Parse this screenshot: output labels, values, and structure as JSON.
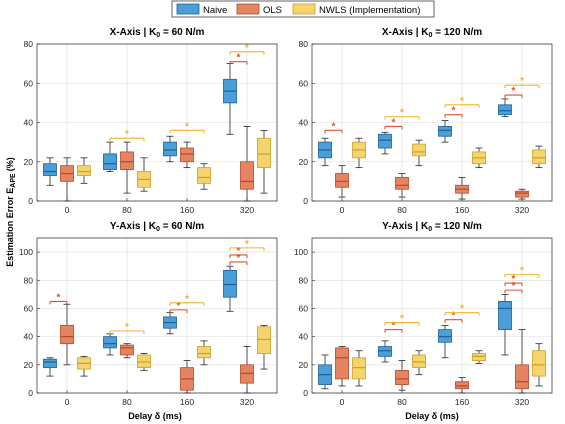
{
  "legend": {
    "entries": [
      {
        "label": "Naive",
        "color": "#4a9fd8"
      },
      {
        "label": "OLS",
        "color": "#e58462"
      },
      {
        "label": "NWLS (Implementation)",
        "color": "#f5d46e"
      }
    ]
  },
  "figure": {
    "ylabel": "Estimation Error E",
    "ylabel_sub": "APE",
    "ylabel_unit": "(%)",
    "xlabel": "Delay δ (ms)"
  },
  "chart_data": [
    {
      "type": "box",
      "title": "X-Axis | K",
      "title_sub": "0",
      "title_rest": " = 60 N/m",
      "categories": [
        "0",
        "80",
        "160",
        "320"
      ],
      "ylim": [
        0,
        80
      ],
      "yticks": [
        0,
        20,
        40,
        60,
        80
      ],
      "grid": true,
      "series": [
        {
          "name": "Naive",
          "boxes": [
            {
              "min": 8,
              "q1": 13,
              "median": 15,
              "q3": 19,
              "max": 22
            },
            {
              "min": 15,
              "q1": 16,
              "median": 19,
              "q3": 24,
              "max": 30
            },
            {
              "min": 20,
              "q1": 23,
              "median": 26,
              "q3": 30,
              "max": 33
            },
            {
              "min": 34,
              "q1": 50,
              "median": 56,
              "q3": 62,
              "max": 70
            }
          ]
        },
        {
          "name": "OLS",
          "boxes": [
            {
              "min": 0,
              "q1": 10,
              "median": 14,
              "q3": 18,
              "max": 22
            },
            {
              "min": 4,
              "q1": 16,
              "median": 20,
              "q3": 25,
              "max": 30
            },
            {
              "min": 17,
              "q1": 20,
              "median": 24,
              "q3": 27,
              "max": 30
            },
            {
              "min": 0,
              "q1": 6,
              "median": 10,
              "q3": 20,
              "max": 38
            }
          ]
        },
        {
          "name": "NWLS (Implementation)",
          "boxes": [
            {
              "min": 9,
              "q1": 13,
              "median": 15,
              "q3": 18,
              "max": 22
            },
            {
              "min": 5,
              "q1": 7,
              "median": 11,
              "q3": 15,
              "max": 22
            },
            {
              "min": 6,
              "q1": 9,
              "median": 12,
              "q3": 17,
              "max": 19
            },
            {
              "min": 4,
              "q1": 17,
              "median": 24,
              "q3": 32,
              "max": 36
            }
          ]
        }
      ],
      "significance": [
        {
          "cat": 1,
          "from": 0,
          "to": 2,
          "level": 32,
          "color": "#f0b429"
        },
        {
          "cat": 2,
          "from": 0,
          "to": 2,
          "level": 36,
          "color": "#f0b429"
        },
        {
          "cat": 3,
          "from": 0,
          "to": 1,
          "level": 71,
          "color": "#e0502a"
        },
        {
          "cat": 3,
          "from": 0,
          "to": 2,
          "level": 76,
          "color": "#f0b429"
        }
      ]
    },
    {
      "type": "box",
      "title": "X-Axis | K",
      "title_sub": "0",
      "title_rest": " = 120 N/m",
      "categories": [
        "0",
        "80",
        "160",
        "320"
      ],
      "ylim": [
        0,
        80
      ],
      "yticks": [
        0,
        20,
        40,
        60,
        80
      ],
      "grid": true,
      "series": [
        {
          "name": "Naive",
          "boxes": [
            {
              "min": 18,
              "q1": 22,
              "median": 26,
              "q3": 30,
              "max": 32
            },
            {
              "min": 24,
              "q1": 27,
              "median": 31,
              "q3": 34,
              "max": 35
            },
            {
              "min": 30,
              "q1": 33,
              "median": 36,
              "q3": 38,
              "max": 41
            },
            {
              "min": 43,
              "q1": 44,
              "median": 46,
              "q3": 49,
              "max": 52
            }
          ]
        },
        {
          "name": "OLS",
          "boxes": [
            {
              "min": 2,
              "q1": 7,
              "median": 10,
              "q3": 14,
              "max": 18
            },
            {
              "min": 2,
              "q1": 6,
              "median": 8,
              "q3": 12,
              "max": 14
            },
            {
              "min": 1,
              "q1": 4,
              "median": 6,
              "q3": 8,
              "max": 12
            },
            {
              "min": 1,
              "q1": 2,
              "median": 4,
              "q3": 5,
              "max": 6
            }
          ]
        },
        {
          "name": "NWLS (Implementation)",
          "boxes": [
            {
              "min": 17,
              "q1": 22,
              "median": 26,
              "q3": 30,
              "max": 32
            },
            {
              "min": 18,
              "q1": 23,
              "median": 25,
              "q3": 29,
              "max": 31
            },
            {
              "min": 17,
              "q1": 19,
              "median": 22,
              "q3": 25,
              "max": 27
            },
            {
              "min": 17,
              "q1": 19,
              "median": 22,
              "q3": 26,
              "max": 28
            }
          ]
        }
      ],
      "significance": [
        {
          "cat": 0,
          "from": 0,
          "to": 1,
          "level": 36,
          "color": "#e0502a"
        },
        {
          "cat": 1,
          "from": 0,
          "to": 1,
          "level": 38,
          "color": "#e0502a"
        },
        {
          "cat": 1,
          "from": 0,
          "to": 2,
          "level": 43,
          "color": "#f0b429"
        },
        {
          "cat": 2,
          "from": 0,
          "to": 1,
          "level": 44,
          "color": "#e0502a"
        },
        {
          "cat": 2,
          "from": 0,
          "to": 2,
          "level": 49,
          "color": "#f0b429"
        },
        {
          "cat": 3,
          "from": 0,
          "to": 1,
          "level": 54,
          "color": "#e0502a"
        },
        {
          "cat": 3,
          "from": 0,
          "to": 2,
          "level": 59,
          "color": "#f0b429"
        }
      ]
    },
    {
      "type": "box",
      "title": "Y-Axis | K",
      "title_sub": "0",
      "title_rest": " = 60 N/m",
      "categories": [
        "0",
        "80",
        "160",
        "320"
      ],
      "ylim": [
        0,
        110
      ],
      "yticks": [
        0,
        20,
        40,
        60,
        80,
        100
      ],
      "grid": true,
      "series": [
        {
          "name": "Naive",
          "boxes": [
            {
              "min": 12,
              "q1": 18,
              "median": 22,
              "q3": 24,
              "max": 25
            },
            {
              "min": 27,
              "q1": 32,
              "median": 35,
              "q3": 40,
              "max": 42
            },
            {
              "min": 42,
              "q1": 46,
              "median": 50,
              "q3": 54,
              "max": 57
            },
            {
              "min": 58,
              "q1": 68,
              "median": 77,
              "q3": 87,
              "max": 90
            }
          ]
        },
        {
          "name": "OLS",
          "boxes": [
            {
              "min": 20,
              "q1": 35,
              "median": 40,
              "q3": 48,
              "max": 63
            },
            {
              "min": 25,
              "q1": 27,
              "median": 32,
              "q3": 34,
              "max": 35
            },
            {
              "min": 0,
              "q1": 2,
              "median": 10,
              "q3": 18,
              "max": 23
            },
            {
              "min": 0,
              "q1": 7,
              "median": 14,
              "q3": 20,
              "max": 33
            }
          ]
        },
        {
          "name": "NWLS (Implementation)",
          "boxes": [
            {
              "min": 12,
              "q1": 17,
              "median": 21,
              "q3": 25,
              "max": 26
            },
            {
              "min": 16,
              "q1": 18,
              "median": 22,
              "q3": 27,
              "max": 28
            },
            {
              "min": 20,
              "q1": 25,
              "median": 28,
              "q3": 33,
              "max": 37
            },
            {
              "min": 17,
              "q1": 28,
              "median": 38,
              "q3": 47,
              "max": 48
            }
          ]
        }
      ],
      "significance": [
        {
          "cat": 0,
          "from": 0,
          "to": 1,
          "level": 65,
          "color": "#e0502a"
        },
        {
          "cat": 1,
          "from": 0,
          "to": 2,
          "level": 44,
          "color": "#f0b429"
        },
        {
          "cat": 2,
          "from": 0,
          "to": 1,
          "level": 59,
          "color": "#e0502a"
        },
        {
          "cat": 2,
          "from": 0,
          "to": 2,
          "level": 64,
          "color": "#f0b429"
        },
        {
          "cat": 3,
          "from": 0,
          "to": 1,
          "level": 93,
          "color": "#e0502a"
        },
        {
          "cat": 3,
          "from": 0,
          "to": 1,
          "level": 98,
          "color": "#e0502a"
        },
        {
          "cat": 3,
          "from": 0,
          "to": 2,
          "level": 103,
          "color": "#f0b429"
        }
      ]
    },
    {
      "type": "box",
      "title": "Y-Axis | K",
      "title_sub": "0",
      "title_rest": " = 120 N/m",
      "categories": [
        "0",
        "80",
        "160",
        "320"
      ],
      "ylim": [
        0,
        110
      ],
      "yticks": [
        0,
        20,
        40,
        60,
        80,
        100
      ],
      "grid": true,
      "series": [
        {
          "name": "Naive",
          "boxes": [
            {
              "min": 3,
              "q1": 6,
              "median": 13,
              "q3": 20,
              "max": 27
            },
            {
              "min": 22,
              "q1": 26,
              "median": 30,
              "q3": 33,
              "max": 37
            },
            {
              "min": 25,
              "q1": 36,
              "median": 40,
              "q3": 45,
              "max": 48
            },
            {
              "min": 27,
              "q1": 45,
              "median": 60,
              "q3": 65,
              "max": 70
            }
          ]
        },
        {
          "name": "OLS",
          "boxes": [
            {
              "min": 5,
              "q1": 10,
              "median": 25,
              "q3": 32,
              "max": 33
            },
            {
              "min": 2,
              "q1": 6,
              "median": 10,
              "q3": 16,
              "max": 23
            },
            {
              "min": 0,
              "q1": 3,
              "median": 5,
              "q3": 8,
              "max": 11
            },
            {
              "min": 0,
              "q1": 3,
              "median": 8,
              "q3": 20,
              "max": 45
            }
          ]
        },
        {
          "name": "NWLS (Implementation)",
          "boxes": [
            {
              "min": 5,
              "q1": 10,
              "median": 18,
              "q3": 25,
              "max": 30
            },
            {
              "min": 13,
              "q1": 18,
              "median": 22,
              "q3": 27,
              "max": 30
            },
            {
              "min": 21,
              "q1": 23,
              "median": 26,
              "q3": 28,
              "max": 30
            },
            {
              "min": 5,
              "q1": 12,
              "median": 20,
              "q3": 30,
              "max": 35
            }
          ]
        }
      ],
      "significance": [
        {
          "cat": 1,
          "from": 0,
          "to": 1,
          "level": 45,
          "color": "#e0502a"
        },
        {
          "cat": 1,
          "from": 0,
          "to": 2,
          "level": 50,
          "color": "#f0b429"
        },
        {
          "cat": 2,
          "from": 0,
          "to": 1,
          "level": 52,
          "color": "#e0502a"
        },
        {
          "cat": 2,
          "from": 0,
          "to": 2,
          "level": 57,
          "color": "#f0b429"
        },
        {
          "cat": 3,
          "from": 0,
          "to": 1,
          "level": 73,
          "color": "#e0502a"
        },
        {
          "cat": 3,
          "from": 0,
          "to": 1,
          "level": 78,
          "color": "#e0502a"
        },
        {
          "cat": 3,
          "from": 0,
          "to": 2,
          "level": 84,
          "color": "#f0b429"
        }
      ]
    }
  ]
}
